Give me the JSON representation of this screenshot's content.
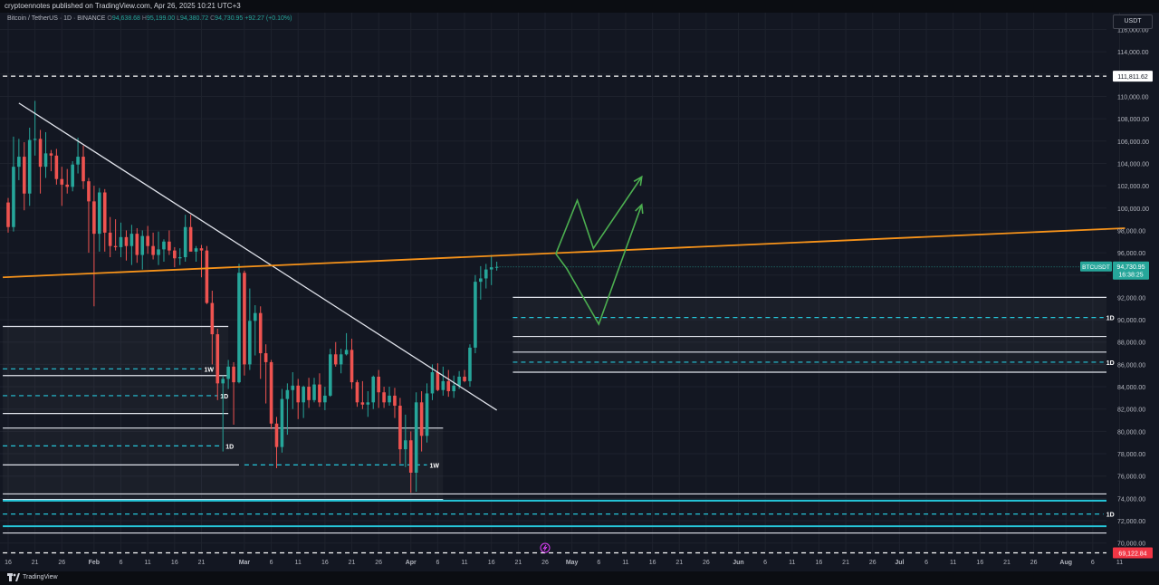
{
  "header": {
    "published_text": "cryptoennotes published on TradingView.com, Apr 26, 2025 10:21 UTC+3"
  },
  "symbol": {
    "description": "Bitcoin / TetherUS · 1D · BINANCE",
    "o_label": "O",
    "o_value": "94,638.68",
    "h_label": "H",
    "h_value": "95,199.00",
    "l_label": "L",
    "l_value": "94,380.72",
    "c_label": "C",
    "c_value": "94,730.95",
    "change": "+92.27 (+0.10%)"
  },
  "currency_button": "USDT",
  "brand": "TradingView",
  "colors": {
    "background": "#131722",
    "up": "#26a69a",
    "down": "#ef5350",
    "trendline_orange": "#f7931a",
    "projection_green": "#4caf50",
    "support_cyan": "#26c6da",
    "axis_text": "#b2b5be"
  },
  "chart_data": {
    "type": "candlestick",
    "symbol": "BTCUSDT",
    "interval": "1D",
    "y_axis": {
      "range": [
        69000,
        117500
      ],
      "ticks": [
        70000,
        72000,
        74000,
        76000,
        78000,
        80000,
        82000,
        84000,
        86000,
        88000,
        90000,
        92000,
        94000,
        96000,
        98000,
        100000,
        102000,
        104000,
        106000,
        108000,
        110000,
        112000,
        114000,
        116000
      ],
      "tick_labels": [
        "70,000.00",
        "72,000.00",
        "74,000.00",
        "76,000.00",
        "78,000.00",
        "80,000.00",
        "82,000.00",
        "84,000.00",
        "86,000.00",
        "88,000.00",
        "90,000.00",
        "92,000.00",
        "94,000.00",
        "96,000.00",
        "98,000.00",
        "100,000.00",
        "102,000.00",
        "104,000.00",
        "106,000.00",
        "108,000.00",
        "110,000.00",
        "112,000.00",
        "114,000.00",
        "116,000.00"
      ]
    },
    "x_axis": {
      "start_date": "2025-01-16",
      "ticks": [
        {
          "d": 0,
          "label": "16"
        },
        {
          "d": 5,
          "label": "21"
        },
        {
          "d": 10,
          "label": "26"
        },
        {
          "d": 16,
          "label": "Feb"
        },
        {
          "d": 21,
          "label": "6"
        },
        {
          "d": 26,
          "label": "11"
        },
        {
          "d": 31,
          "label": "16"
        },
        {
          "d": 36,
          "label": "21"
        },
        {
          "d": 44,
          "label": "Mar"
        },
        {
          "d": 49,
          "label": "6"
        },
        {
          "d": 54,
          "label": "11"
        },
        {
          "d": 59,
          "label": "16"
        },
        {
          "d": 64,
          "label": "21"
        },
        {
          "d": 69,
          "label": "26"
        },
        {
          "d": 75,
          "label": "Apr"
        },
        {
          "d": 80,
          "label": "6"
        },
        {
          "d": 85,
          "label": "11"
        },
        {
          "d": 90,
          "label": "16"
        },
        {
          "d": 95,
          "label": "21"
        },
        {
          "d": 100,
          "label": "26"
        },
        {
          "d": 105,
          "label": "May"
        },
        {
          "d": 110,
          "label": "6"
        },
        {
          "d": 115,
          "label": "11"
        },
        {
          "d": 120,
          "label": "16"
        },
        {
          "d": 125,
          "label": "21"
        },
        {
          "d": 130,
          "label": "26"
        },
        {
          "d": 136,
          "label": "Jun"
        },
        {
          "d": 141,
          "label": "6"
        },
        {
          "d": 146,
          "label": "11"
        },
        {
          "d": 151,
          "label": "16"
        },
        {
          "d": 156,
          "label": "21"
        },
        {
          "d": 161,
          "label": "26"
        },
        {
          "d": 166,
          "label": "Jul"
        },
        {
          "d": 171,
          "label": "6"
        },
        {
          "d": 176,
          "label": "11"
        },
        {
          "d": 181,
          "label": "16"
        },
        {
          "d": 186,
          "label": "21"
        },
        {
          "d": 191,
          "label": "26"
        },
        {
          "d": 197,
          "label": "Aug"
        },
        {
          "d": 202,
          "label": "6"
        },
        {
          "d": 207,
          "label": "11"
        }
      ]
    },
    "candles": [
      [
        100500,
        100900,
        97800,
        98300
      ],
      [
        98300,
        106400,
        97900,
        103700
      ],
      [
        103700,
        106200,
        102500,
        104600
      ],
      [
        104600,
        105900,
        99800,
        101300
      ],
      [
        101300,
        107200,
        100200,
        106100
      ],
      [
        106100,
        109600,
        104700,
        106200
      ],
      [
        106200,
        107000,
        101300,
        103700
      ],
      [
        103700,
        106800,
        102700,
        104900
      ],
      [
        104900,
        105200,
        103300,
        104700
      ],
      [
        104700,
        105300,
        102100,
        102600
      ],
      [
        102600,
        103700,
        100200,
        102100
      ],
      [
        102100,
        103500,
        101300,
        101900
      ],
      [
        101900,
        104200,
        101500,
        103900
      ],
      [
        103900,
        106300,
        103100,
        104600
      ],
      [
        104600,
        105600,
        101700,
        102400
      ],
      [
        102400,
        102700,
        96000,
        100600
      ],
      [
        100600,
        102000,
        91200,
        97700
      ],
      [
        97700,
        101800,
        96100,
        101400
      ],
      [
        101400,
        101700,
        96100,
        97800
      ],
      [
        97800,
        99200,
        95600,
        96600
      ],
      [
        96600,
        99000,
        96200,
        96500
      ],
      [
        96500,
        98700,
        95600,
        97400
      ],
      [
        97400,
        98000,
        95300,
        96600
      ],
      [
        96600,
        98500,
        94900,
        97700
      ],
      [
        97700,
        98200,
        95100,
        95800
      ],
      [
        95800,
        98000,
        94500,
        97500
      ],
      [
        97500,
        98400,
        95900,
        96600
      ],
      [
        96600,
        97800,
        95400,
        95800
      ],
      [
        95800,
        97900,
        94900,
        96300
      ],
      [
        96300,
        97200,
        95200,
        97000
      ],
      [
        97000,
        98000,
        95800,
        96200
      ],
      [
        96200,
        96500,
        94700,
        95500
      ],
      [
        95500,
        96400,
        94900,
        95600
      ],
      [
        95600,
        99400,
        95200,
        98300
      ],
      [
        98300,
        99400,
        96300,
        96100
      ],
      [
        96100,
        96600,
        95200,
        96400
      ],
      [
        96400,
        96700,
        93800,
        96200
      ],
      [
        96200,
        96600,
        91400,
        91500
      ],
      [
        91500,
        92600,
        86000,
        88700
      ],
      [
        88700,
        89200,
        82800,
        84300
      ],
      [
        84300,
        85000,
        78200,
        84700
      ],
      [
        84700,
        86400,
        83800,
        85800
      ],
      [
        85800,
        86200,
        80600,
        84400
      ],
      [
        84400,
        95000,
        84300,
        94200
      ],
      [
        94200,
        94400,
        85000,
        86000
      ],
      [
        86000,
        92800,
        85500,
        89900
      ],
      [
        89900,
        91300,
        86800,
        90600
      ],
      [
        90600,
        91200,
        84700,
        87000
      ],
      [
        87000,
        87800,
        82500,
        86200
      ],
      [
        86200,
        86400,
        80200,
        80700
      ],
      [
        80700,
        81300,
        76700,
        78600
      ],
      [
        78600,
        83800,
        78100,
        82900
      ],
      [
        82900,
        84300,
        79700,
        83700
      ],
      [
        83700,
        85300,
        82000,
        84100
      ],
      [
        84100,
        84700,
        81100,
        82600
      ],
      [
        82600,
        84100,
        81200,
        84000
      ],
      [
        84000,
        84800,
        82100,
        82800
      ],
      [
        82800,
        84800,
        82600,
        84200
      ],
      [
        84200,
        85200,
        82200,
        82600
      ],
      [
        82600,
        84000,
        81900,
        83200
      ],
      [
        83200,
        87400,
        83100,
        86900
      ],
      [
        86900,
        88000,
        85800,
        86000
      ],
      [
        86000,
        87400,
        85200,
        86900
      ],
      [
        86900,
        88800,
        86800,
        87300
      ],
      [
        87300,
        88300,
        83800,
        84400
      ],
      [
        84400,
        84600,
        82200,
        82600
      ],
      [
        82600,
        84500,
        82000,
        82400
      ],
      [
        82400,
        83600,
        81300,
        82600
      ],
      [
        82600,
        85000,
        82000,
        84900
      ],
      [
        84900,
        85500,
        82100,
        83500
      ],
      [
        83500,
        84000,
        82100,
        82600
      ],
      [
        82600,
        84000,
        82300,
        83200
      ],
      [
        83200,
        83900,
        81200,
        82300
      ],
      [
        82300,
        83000,
        77100,
        78400
      ],
      [
        78400,
        81500,
        76800,
        79200
      ],
      [
        79200,
        80000,
        74500,
        76300
      ],
      [
        76300,
        83500,
        74600,
        82600
      ],
      [
        82600,
        83600,
        78200,
        79600
      ],
      [
        79600,
        84300,
        79000,
        83400
      ],
      [
        83400,
        86000,
        82800,
        85300
      ],
      [
        85300,
        86100,
        83600,
        83700
      ],
      [
        83700,
        85800,
        83200,
        84500
      ],
      [
        84500,
        85500,
        83100,
        83600
      ],
      [
        83600,
        85000,
        83000,
        84100
      ],
      [
        84100,
        85400,
        83800,
        84900
      ],
      [
        84900,
        85500,
        84400,
        84500
      ],
      [
        84500,
        87800,
        84000,
        87500
      ],
      [
        87500,
        94000,
        87000,
        93400
      ],
      [
        93400,
        94800,
        91800,
        93700
      ],
      [
        93700,
        95000,
        92800,
        94500
      ],
      [
        94500,
        95800,
        93100,
        94700
      ],
      [
        94700,
        95200,
        94400,
        94731
      ]
    ],
    "last_price": {
      "label": "BTCUSDT",
      "value": "94,730.95",
      "countdown": "16:38:25"
    },
    "price_markers": [
      {
        "value": 111811.62,
        "label": "111,811.62"
      },
      {
        "value": 69122.84,
        "label": "69,122.84"
      }
    ],
    "trendlines": [
      {
        "name": "descending-trendline",
        "color": "#e0e3eb",
        "from": {
          "d": 2,
          "price": 109400
        },
        "to": {
          "d": 91,
          "price": 81900
        }
      },
      {
        "name": "ascending-orange-trendline",
        "color": "#f7931a",
        "from": {
          "d": -1,
          "price": 93800
        },
        "to": {
          "d": 208,
          "price": 98200
        }
      }
    ],
    "projections": [
      {
        "name": "projection-path-lower",
        "points": [
          {
            "d": 102,
            "price": 95900
          },
          {
            "d": 104,
            "price": 94600
          },
          {
            "d": 110,
            "price": 89600
          },
          {
            "d": 118,
            "price": 100300
          }
        ]
      },
      {
        "name": "projection-path-upper",
        "points": [
          {
            "d": 102,
            "price": 95900
          },
          {
            "d": 106,
            "price": 100700
          },
          {
            "d": 109,
            "price": 96400
          },
          {
            "d": 118,
            "price": 102800
          }
        ]
      }
    ],
    "levels": [
      {
        "price": 111811.62,
        "d_from": -1,
        "d_to": 208,
        "style": "dashed",
        "color": "#ffffff",
        "label": ""
      },
      {
        "price": 92000,
        "d_from": 94,
        "d_to": 208,
        "style": "solid",
        "color": "#e0e3eb",
        "label": ""
      },
      {
        "price": 90200,
        "d_from": 94,
        "d_to": 204,
        "style": "dashed",
        "color": "#26c6da",
        "label": "1D"
      },
      {
        "price": 88500,
        "d_from": 94,
        "d_to": 208,
        "style": "solid",
        "color": "#e0e3eb",
        "label": ""
      },
      {
        "price": 87100,
        "d_from": 94,
        "d_to": 208,
        "style": "solid",
        "color": "#e0e3eb",
        "label": ""
      },
      {
        "price": 86200,
        "d_from": 94,
        "d_to": 204,
        "style": "dashed",
        "color": "#26c6da",
        "label": "1D"
      },
      {
        "price": 85300,
        "d_from": 94,
        "d_to": 208,
        "style": "solid",
        "color": "#e0e3eb",
        "label": ""
      },
      {
        "price": 89400,
        "d_from": -1,
        "d_to": 41,
        "style": "solid",
        "color": "#e0e3eb",
        "label": ""
      },
      {
        "price": 85600,
        "d_from": -1,
        "d_to": 36,
        "style": "dashed",
        "color": "#26c6da",
        "label": "1W"
      },
      {
        "price": 85000,
        "d_from": -1,
        "d_to": 41,
        "style": "solid",
        "color": "#e0e3eb",
        "label": ""
      },
      {
        "price": 83200,
        "d_from": -1,
        "d_to": 39,
        "style": "dashed",
        "color": "#26c6da",
        "label": "1D"
      },
      {
        "price": 81600,
        "d_from": -1,
        "d_to": 41,
        "style": "solid",
        "color": "#e0e3eb",
        "label": ""
      },
      {
        "price": 80300,
        "d_from": -1,
        "d_to": 81,
        "style": "solid",
        "color": "#e0e3eb",
        "label": ""
      },
      {
        "price": 78700,
        "d_from": -1,
        "d_to": 40,
        "style": "dashed",
        "color": "#26c6da",
        "label": "1D"
      },
      {
        "price": 77000,
        "d_from": -1,
        "d_to": 43,
        "style": "solid",
        "color": "#e0e3eb",
        "label": ""
      },
      {
        "price": 77000,
        "d_from": 44,
        "d_to": 78,
        "style": "dashed",
        "color": "#26c6da",
        "label": "1W"
      },
      {
        "price": 74400,
        "d_from": -1,
        "d_to": 208,
        "style": "solid",
        "color": "#e0e3eb",
        "label": ""
      },
      {
        "price": 73900,
        "d_from": -1,
        "d_to": 81,
        "style": "solid",
        "color": "#e0e3eb",
        "label": ""
      },
      {
        "price": 73800,
        "d_from": -1,
        "d_to": 208,
        "style": "solid",
        "color": "#26c6da",
        "label": ""
      },
      {
        "price": 72600,
        "d_from": -1,
        "d_to": 204,
        "style": "dashed",
        "color": "#26c6da",
        "label": "1D"
      },
      {
        "price": 71500,
        "d_from": -1,
        "d_to": 208,
        "style": "solid",
        "color": "#26c6da",
        "label": ""
      },
      {
        "price": 70900,
        "d_from": -1,
        "d_to": 208,
        "style": "solid",
        "color": "#e0e3eb",
        "label": ""
      },
      {
        "price": 69122.84,
        "d_from": -1,
        "d_to": 208,
        "style": "dashed",
        "color": "#ffffff",
        "label": ""
      }
    ],
    "shaded_zones": [
      {
        "d_from": -1,
        "d_to": 41,
        "top": 89400,
        "bottom": 81600
      },
      {
        "d_from": -1,
        "d_to": 81,
        "top": 80300,
        "bottom": 73900
      },
      {
        "d_from": 94,
        "d_to": 208,
        "top": 92000,
        "bottom": 85300
      }
    ]
  }
}
